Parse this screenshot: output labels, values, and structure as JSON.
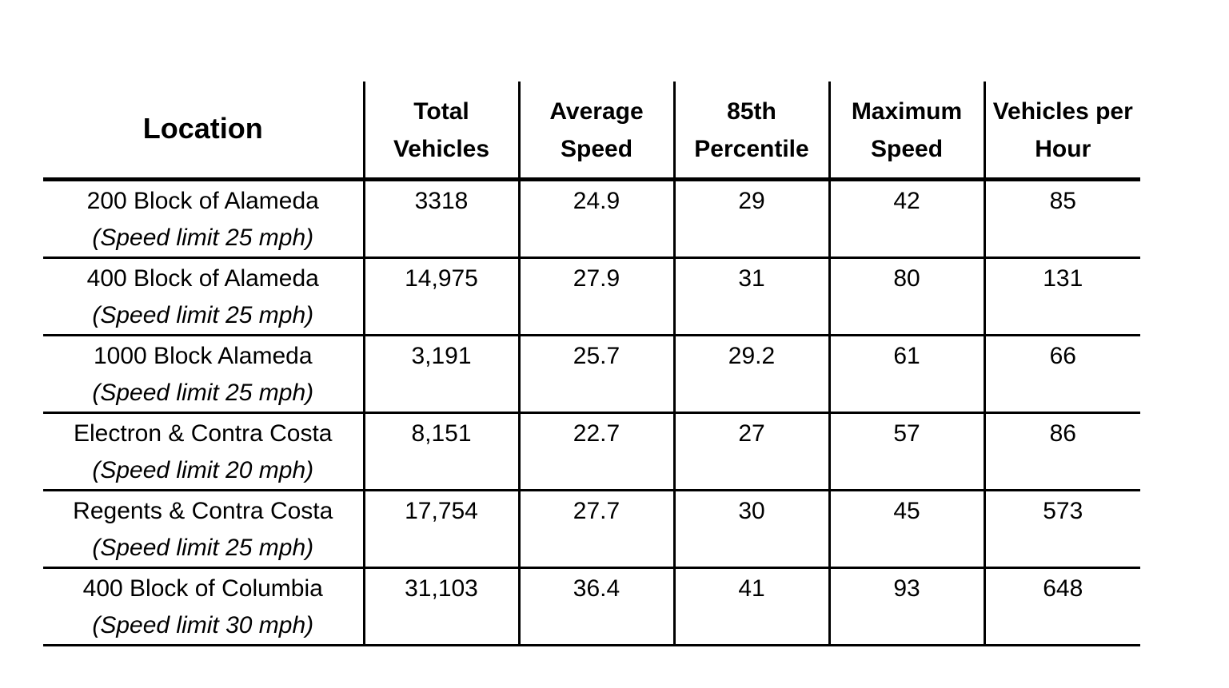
{
  "headers": {
    "location": "Location",
    "total_vehicles": [
      "Total",
      "Vehicles"
    ],
    "average_speed": [
      "Average",
      "Speed"
    ],
    "percentile_85": [
      "85th",
      "Percentile"
    ],
    "maximum_speed": [
      "Maximum",
      "Speed"
    ],
    "vehicles_per_hour": [
      "Vehicles per",
      "Hour"
    ]
  },
  "rows": [
    {
      "location": "200 Block of Alameda",
      "limit": "(Speed limit 25 mph)",
      "total": "3318",
      "avg": "24.9",
      "p85": "29",
      "max": "42",
      "vph": "85"
    },
    {
      "location": "400 Block of Alameda",
      "limit": "(Speed limit 25 mph)",
      "total": "14,975",
      "avg": "27.9",
      "p85": "31",
      "max": "80",
      "vph": "131"
    },
    {
      "location": "1000 Block Alameda",
      "limit": "(Speed limit 25 mph)",
      "total": "3,191",
      "avg": "25.7",
      "p85": "29.2",
      "max": "61",
      "vph": "66"
    },
    {
      "location": "Electron & Contra Costa",
      "limit": "(Speed limit 20 mph)",
      "total": "8,151",
      "avg": "22.7",
      "p85": "27",
      "max": "57",
      "vph": "86"
    },
    {
      "location": "Regents & Contra Costa",
      "limit": "(Speed limit 25 mph)",
      "total": "17,754",
      "avg": "27.7",
      "p85": "30",
      "max": "45",
      "vph": "573"
    },
    {
      "location": "400 Block of Columbia",
      "limit": "(Speed limit 30 mph)",
      "total": "31,103",
      "avg": "36.4",
      "p85": "41",
      "max": "93",
      "vph": "648"
    }
  ]
}
